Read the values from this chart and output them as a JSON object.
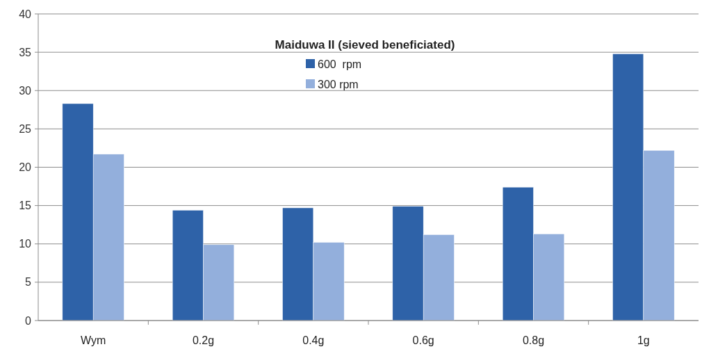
{
  "chart_data": {
    "type": "bar",
    "title": "Maiduwa II (sieved beneficiated)",
    "categories": [
      "Wym",
      "0.2g",
      "0.4g",
      "0.6g",
      "0.8g",
      "1g"
    ],
    "series": [
      {
        "name": "600  rpm",
        "color": "#2e62a8",
        "values": [
          28.3,
          14.4,
          14.7,
          14.9,
          17.4,
          34.8
        ]
      },
      {
        "name": "300 rpm",
        "color": "#93afdc",
        "values": [
          21.7,
          9.9,
          10.2,
          11.2,
          11.3,
          22.2
        ]
      }
    ],
    "ylim": [
      0,
      40
    ],
    "yticks": [
      0,
      5,
      10,
      15,
      20,
      25,
      30,
      35,
      40
    ],
    "grid": "y",
    "legend": "top"
  }
}
